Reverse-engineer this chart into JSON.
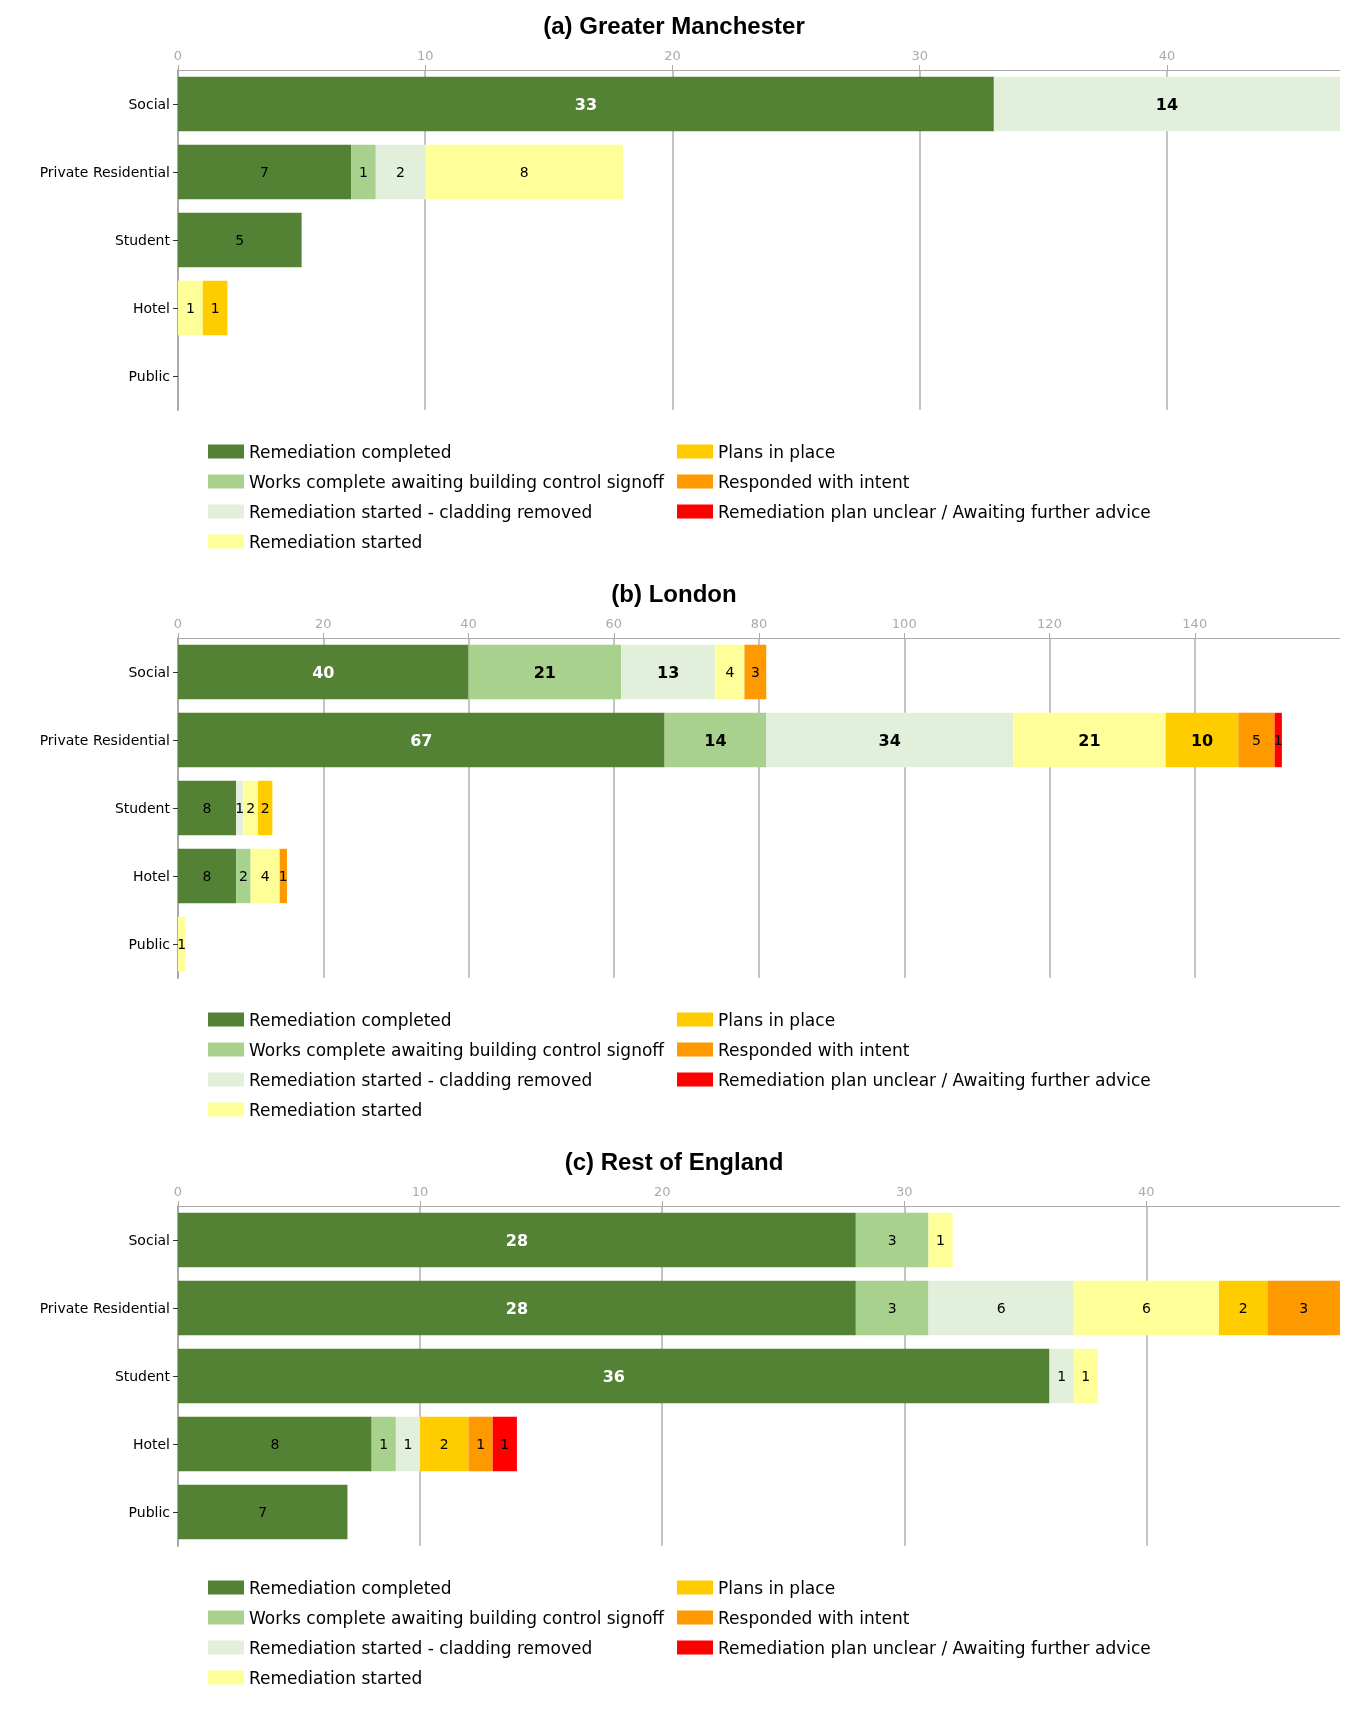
{
  "chart_data": [
    {
      "type": "bar",
      "title": "(a) Greater Manchester",
      "orientation": "horizontal",
      "stacked": true,
      "data_labels": true,
      "grid": "x",
      "legend": "bottom",
      "categories": [
        "Social",
        "Private Residential",
        "Student",
        "Hotel",
        "Public"
      ],
      "xlim": [
        0,
        47
      ],
      "xticks": [
        0,
        10,
        20,
        30,
        40
      ],
      "series": [
        {
          "name": "Remediation completed",
          "color": "#548235",
          "values": [
            33,
            7,
            5,
            null,
            null
          ]
        },
        {
          "name": "Works complete awaiting building control signoff",
          "color": "#a9d18e",
          "values": [
            null,
            1,
            null,
            null,
            null
          ]
        },
        {
          "name": "Remediation started - cladding removed",
          "color": "#e2efda",
          "values": [
            14,
            2,
            null,
            null,
            null
          ]
        },
        {
          "name": "Remediation started",
          "color": "#ffff99",
          "values": [
            null,
            8,
            null,
            1,
            null
          ]
        },
        {
          "name": "Plans in place",
          "color": "#ffcc00",
          "values": [
            null,
            null,
            null,
            1,
            null
          ]
        },
        {
          "name": "Responded with intent",
          "color": "#ff9900",
          "values": [
            null,
            null,
            null,
            null,
            null
          ]
        },
        {
          "name": "Remediation plan unclear / Awaiting further advice",
          "color": "#ff0000",
          "values": [
            null,
            null,
            null,
            null,
            null
          ]
        }
      ]
    },
    {
      "type": "bar",
      "title": "(b) London",
      "orientation": "horizontal",
      "stacked": true,
      "data_labels": true,
      "grid": "x",
      "legend": "bottom",
      "categories": [
        "Social",
        "Private Residential",
        "Student",
        "Hotel",
        "Public"
      ],
      "xlim": [
        0,
        160
      ],
      "xticks": [
        0,
        20,
        40,
        60,
        80,
        100,
        120,
        140
      ],
      "series": [
        {
          "name": "Remediation completed",
          "color": "#548235",
          "values": [
            40,
            67,
            8,
            8,
            null
          ]
        },
        {
          "name": "Works complete awaiting building control signoff",
          "color": "#a9d18e",
          "values": [
            21,
            14,
            null,
            2,
            null
          ]
        },
        {
          "name": "Remediation started - cladding removed",
          "color": "#e2efda",
          "values": [
            13,
            34,
            1,
            null,
            null
          ]
        },
        {
          "name": "Remediation started",
          "color": "#ffff99",
          "values": [
            4,
            21,
            2,
            4,
            1
          ]
        },
        {
          "name": "Plans in place",
          "color": "#ffcc00",
          "values": [
            null,
            10,
            2,
            null,
            null
          ]
        },
        {
          "name": "Responded with intent",
          "color": "#ff9900",
          "values": [
            3,
            5,
            null,
            1,
            null
          ]
        },
        {
          "name": "Remediation plan unclear / Awaiting further advice",
          "color": "#ff0000",
          "values": [
            null,
            1,
            null,
            null,
            null
          ]
        }
      ]
    },
    {
      "type": "bar",
      "title": "(c) Rest of England",
      "orientation": "horizontal",
      "stacked": true,
      "data_labels": true,
      "grid": "x",
      "legend": "bottom",
      "categories": [
        "Social",
        "Private Residential",
        "Student",
        "Hotel",
        "Public"
      ],
      "xlim": [
        0,
        48
      ],
      "xticks": [
        0,
        10,
        20,
        30,
        40
      ],
      "series": [
        {
          "name": "Remediation completed",
          "color": "#548235",
          "values": [
            28,
            28,
            36,
            8,
            7
          ]
        },
        {
          "name": "Works complete awaiting building control signoff",
          "color": "#a9d18e",
          "values": [
            3,
            3,
            null,
            1,
            null
          ]
        },
        {
          "name": "Remediation started - cladding removed",
          "color": "#e2efda",
          "values": [
            null,
            6,
            1,
            1,
            null
          ]
        },
        {
          "name": "Remediation started",
          "color": "#ffff99",
          "values": [
            1,
            6,
            1,
            null,
            null
          ]
        },
        {
          "name": "Plans in place",
          "color": "#ffcc00",
          "values": [
            null,
            2,
            null,
            2,
            null
          ]
        },
        {
          "name": "Responded with intent",
          "color": "#ff9900",
          "values": [
            null,
            3,
            null,
            1,
            null
          ]
        },
        {
          "name": "Remediation plan unclear / Awaiting further advice",
          "color": "#ff0000",
          "values": [
            null,
            null,
            null,
            1,
            null
          ]
        }
      ]
    }
  ]
}
